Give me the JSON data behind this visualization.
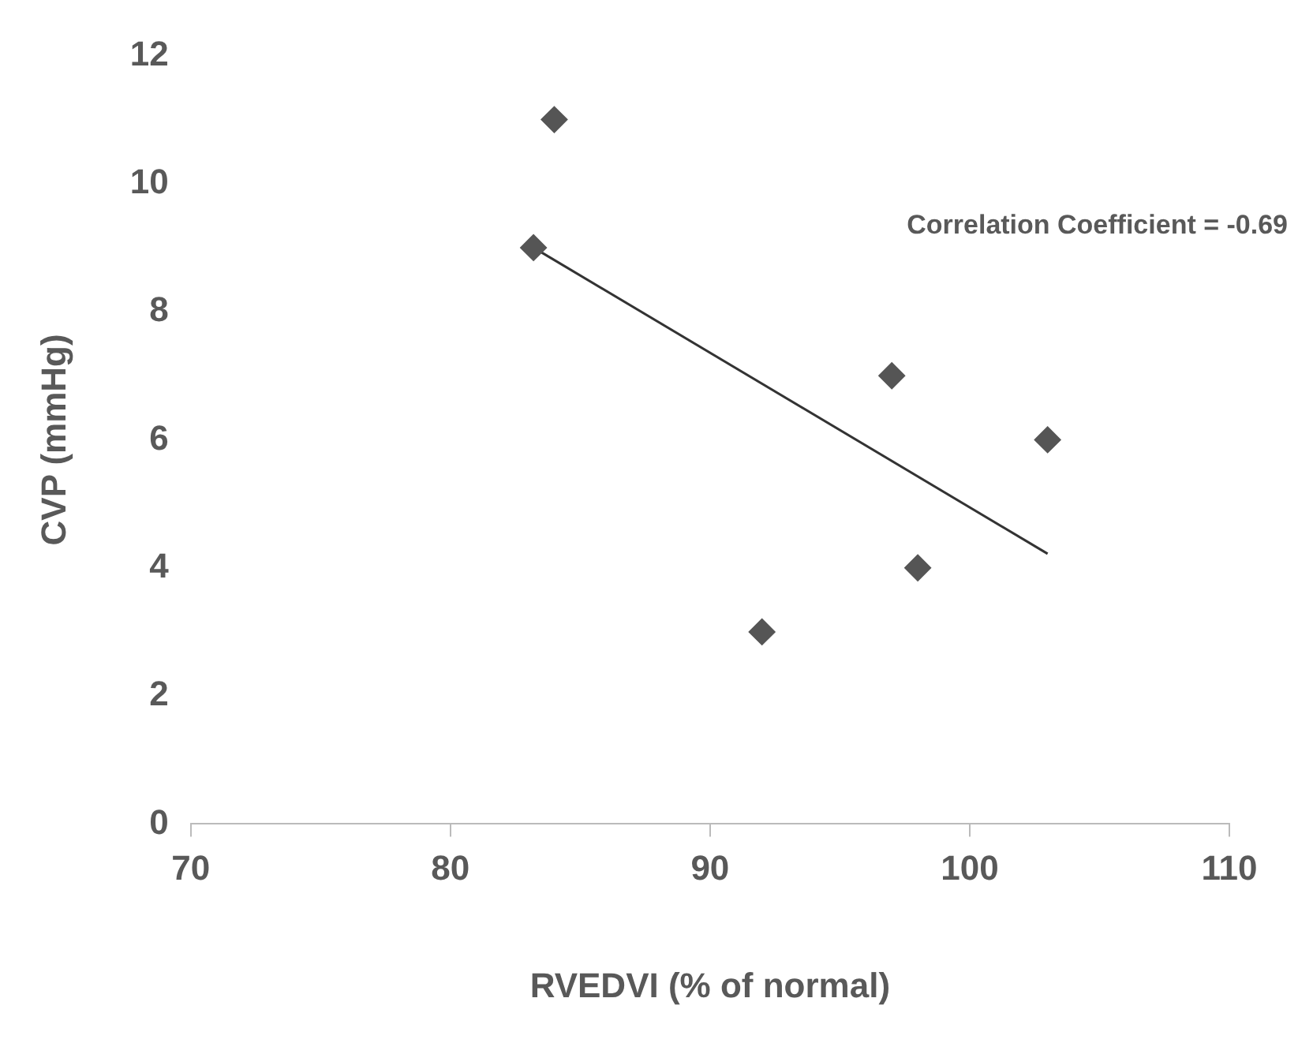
{
  "chart_data": {
    "type": "scatter",
    "xlabel": "RVEDVI (% of normal)",
    "ylabel": "CVP (mmHg)",
    "annotations": [
      "Correlation Coefficient = -0.69"
    ],
    "series": [
      {
        "color": "#555555",
        "marker": "diamond",
        "x": [
          84,
          83.2,
          97,
          103,
          98,
          92
        ],
        "values": [
          11,
          9,
          7,
          6,
          4,
          3
        ]
      },
      {
        "type": "line",
        "color": "#333333",
        "marker": "none",
        "x": [
          83.2,
          103
        ],
        "values": [
          9,
          4.22
        ]
      }
    ],
    "xlim": [
      70,
      110
    ],
    "xticks": [
      70,
      80,
      90,
      100,
      110
    ],
    "ylim": [
      0,
      12
    ],
    "yticks": [
      0,
      2,
      4,
      6,
      8,
      10,
      12
    ],
    "grid": false,
    "legend": false
  }
}
